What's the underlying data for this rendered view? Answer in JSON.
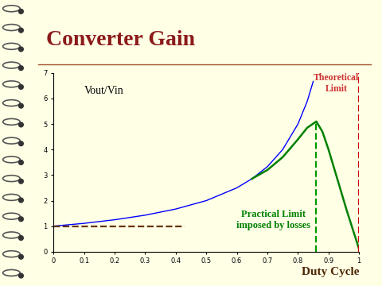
{
  "chart_data": {
    "type": "line",
    "title": "Converter Gain",
    "x_label": "Duty Cycle",
    "y_label": "Vout/Vin",
    "xlim": [
      0,
      1
    ],
    "ylim": [
      0,
      7
    ],
    "xticks": [
      0,
      0.1,
      0.2,
      0.3,
      0.4,
      0.5,
      0.6,
      0.7,
      0.8,
      0.9,
      1
    ],
    "yticks": [
      0,
      1,
      2,
      3,
      4,
      5,
      6,
      7
    ],
    "grid": false,
    "series": [
      {
        "color": "#0000ff",
        "line_style": "solid",
        "x": [
          0,
          0.1,
          0.2,
          0.3,
          0.4,
          0.5,
          0.6,
          0.65,
          0.7,
          0.75,
          0.8,
          0.83,
          0.85
        ],
        "values": [
          1,
          1.11,
          1.25,
          1.43,
          1.67,
          2.0,
          2.5,
          2.86,
          3.33,
          4.0,
          5.0,
          5.88,
          6.67
        ]
      },
      {
        "color": "#008000",
        "line_style": "solid",
        "x": [
          0.65,
          0.7,
          0.75,
          0.8,
          0.83,
          0.86,
          0.88,
          0.9,
          0.93,
          0.96,
          1.0
        ],
        "values": [
          2.86,
          3.2,
          3.7,
          4.4,
          4.85,
          5.1,
          4.7,
          4.0,
          2.8,
          1.6,
          0.1
        ]
      },
      {
        "color": "#663300",
        "line_style": "dashed",
        "x": [
          0,
          0.43
        ],
        "values": [
          1,
          1
        ]
      },
      {
        "color": "#009900",
        "line_style": "dashed",
        "x": [
          0.86,
          0.86
        ],
        "values": [
          0,
          5.1
        ]
      },
      {
        "color": "#cc0000",
        "line_style": "dashed",
        "x": [
          1,
          1
        ],
        "values": [
          0,
          7
        ]
      }
    ],
    "annotations": [
      {
        "text": "Theoretical\nLimit",
        "color": "#cc3333"
      },
      {
        "text": "Practical Limit\nimposed by losses",
        "color": "#008000"
      }
    ]
  }
}
